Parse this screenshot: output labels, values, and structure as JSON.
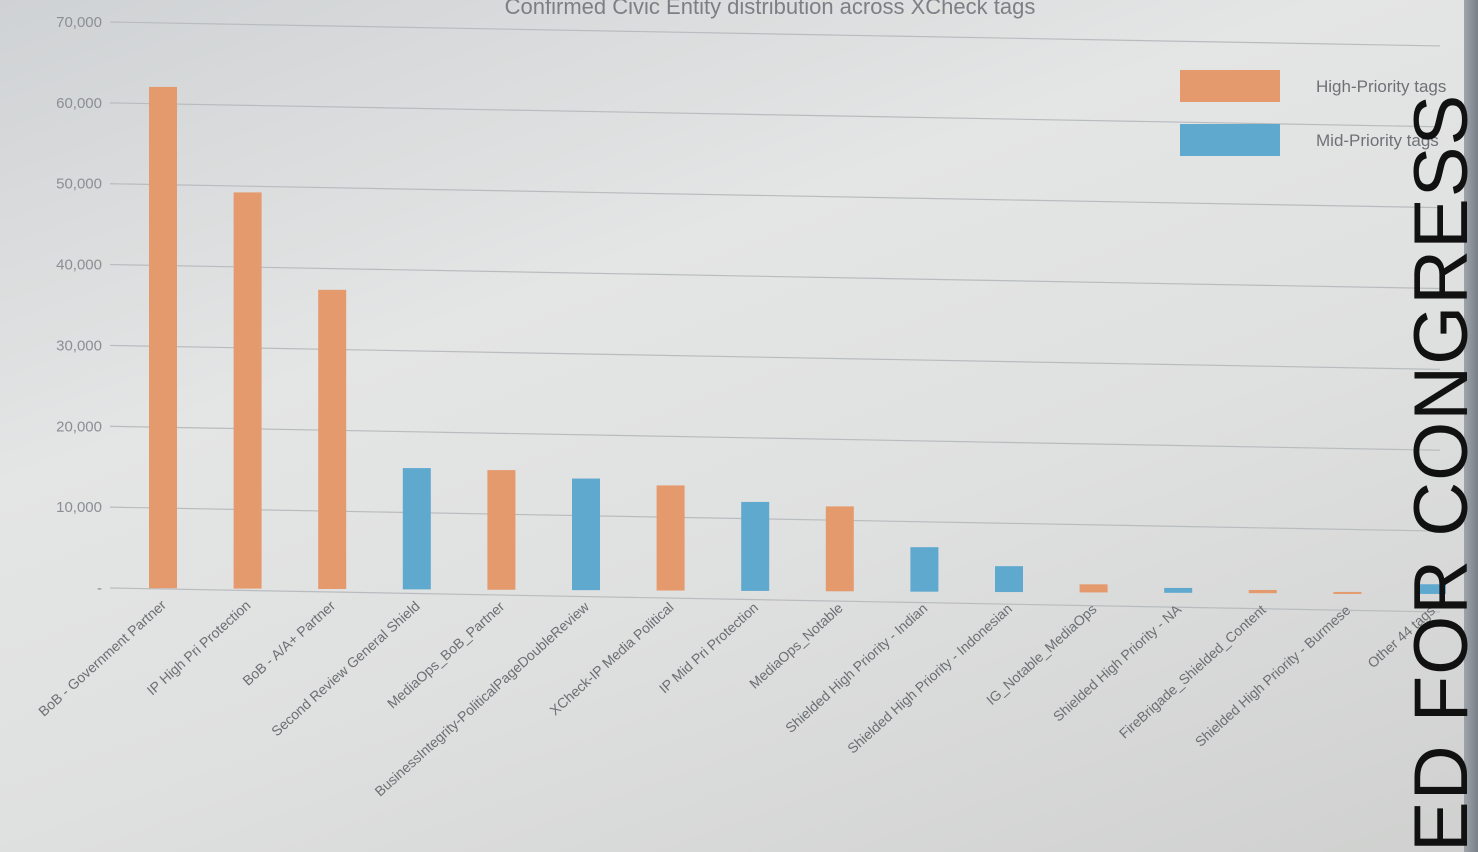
{
  "chart_data": {
    "type": "bar",
    "title": "Confirmed Civic Entity distribution across XCheck tags",
    "xlabel": "",
    "ylabel": "",
    "ylim": [
      0,
      70000
    ],
    "yticks": [
      {
        "value": 70000,
        "label": "70,000"
      },
      {
        "value": 60000,
        "label": "60,000"
      },
      {
        "value": 50000,
        "label": "50,000"
      },
      {
        "value": 40000,
        "label": "40,000"
      },
      {
        "value": 30000,
        "label": "30,000"
      },
      {
        "value": 20000,
        "label": "20,000"
      },
      {
        "value": 10000,
        "label": "10,000"
      },
      {
        "value": 0,
        "label": "-"
      }
    ],
    "grid": true,
    "legend_position": "top-right",
    "legend": [
      {
        "name": "High-Priority tags",
        "color": "#e59a6e"
      },
      {
        "name": "Mid-Priority tags",
        "color": "#5fa9cf"
      }
    ],
    "categories": [
      "BoB - Government Partner",
      "IP High Pri Protection",
      "BoB - A/A+ Partner",
      "Second Review General Shield",
      "MediaOps_BoB_Partner",
      "BusinessIntegrity-PoliticalPageDoubleReview",
      "XCheck-IP Media Political",
      "IP Mid Pri Protection",
      "MediaOps_Notable",
      "Shielded High Priority - Indian",
      "Shielded High Priority - Indonesian",
      "IG_Notable_MediaOps",
      "Shielded High Priority - NA",
      "FireBrigade_Shielded_Content",
      "Shielded High Priority - Burmese",
      "Other 44 tags"
    ],
    "values": [
      62000,
      49000,
      37000,
      15000,
      14800,
      13800,
      13000,
      11000,
      10500,
      5500,
      3200,
      1000,
      600,
      400,
      200,
      1200
    ],
    "priority": [
      "High",
      "High",
      "High",
      "Mid",
      "High",
      "Mid",
      "High",
      "Mid",
      "High",
      "Mid",
      "Mid",
      "High",
      "Mid",
      "High",
      "High",
      "Mid"
    ]
  },
  "stamp_text": "ED FOR CONGRESS"
}
